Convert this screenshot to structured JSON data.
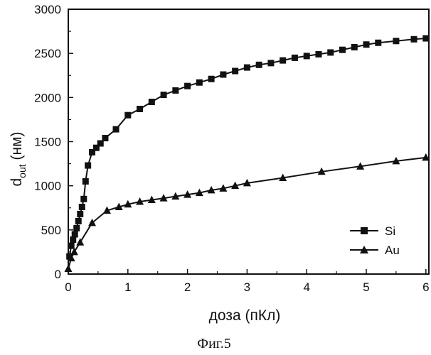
{
  "chart_data": {
    "type": "line",
    "xlabel": "доза (пКл)",
    "ylabel_main": "d",
    "ylabel_sub": "out",
    "ylabel_unit": " (нм)",
    "xlim": [
      0,
      6.05
    ],
    "ylim": [
      0,
      3000
    ],
    "xticks": [
      0,
      1,
      2,
      3,
      4,
      5,
      6
    ],
    "yticks": [
      0,
      500,
      1000,
      1500,
      2000,
      2500,
      3000
    ],
    "xtick_labels": [
      "0",
      "1",
      "2",
      "3",
      "4",
      "5",
      "6"
    ],
    "ytick_labels": [
      "0",
      "500",
      "1000",
      "1500",
      "2000",
      "2500",
      "3000"
    ],
    "grid": false,
    "legend_position": "bottom-right",
    "caption": "Фиг.5",
    "series": [
      {
        "name": "Si",
        "marker": "square",
        "color": "#111111",
        "x": [
          0.02,
          0.05,
          0.08,
          0.11,
          0.14,
          0.17,
          0.2,
          0.23,
          0.26,
          0.29,
          0.33,
          0.4,
          0.47,
          0.54,
          0.62,
          0.8,
          1.0,
          1.2,
          1.4,
          1.6,
          1.8,
          2.0,
          2.2,
          2.4,
          2.6,
          2.8,
          3.0,
          3.2,
          3.4,
          3.6,
          3.8,
          4.0,
          4.2,
          4.4,
          4.6,
          4.8,
          5.0,
          5.2,
          5.5,
          5.8,
          6.0
        ],
        "y": [
          200,
          320,
          390,
          450,
          520,
          600,
          680,
          760,
          850,
          1050,
          1230,
          1380,
          1430,
          1480,
          1540,
          1640,
          1800,
          1870,
          1950,
          2030,
          2080,
          2130,
          2170,
          2210,
          2260,
          2300,
          2340,
          2370,
          2390,
          2420,
          2450,
          2470,
          2490,
          2510,
          2540,
          2570,
          2600,
          2620,
          2640,
          2660,
          2670
        ]
      },
      {
        "name": "Au",
        "marker": "triangle",
        "color": "#111111",
        "x": [
          0.0,
          0.05,
          0.1,
          0.2,
          0.4,
          0.65,
          0.85,
          1.0,
          1.2,
          1.4,
          1.6,
          1.8,
          2.0,
          2.2,
          2.4,
          2.6,
          2.8,
          3.0,
          3.6,
          4.25,
          4.9,
          5.5,
          6.0
        ],
        "y": [
          60,
          180,
          250,
          360,
          580,
          720,
          760,
          790,
          820,
          840,
          860,
          880,
          900,
          920,
          950,
          970,
          1000,
          1030,
          1090,
          1160,
          1220,
          1280,
          1320
        ]
      }
    ]
  }
}
